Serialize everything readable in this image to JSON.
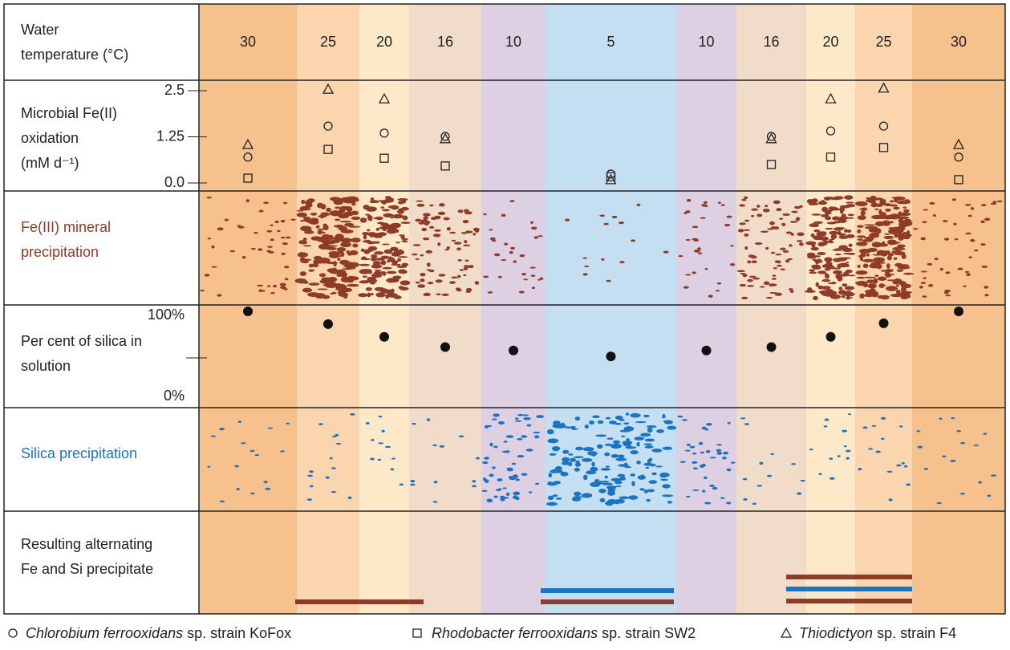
{
  "header": {
    "label_lines": [
      "Water",
      "temperature (°C)"
    ],
    "temperatures": [
      30,
      25,
      20,
      16,
      10,
      5,
      10,
      16,
      20,
      25,
      30
    ],
    "colors": [
      "#f7c18e",
      "#fad5ae",
      "#fde9c8",
      "#f1dcc9",
      "#ddd0e3",
      "#c4def2",
      "#ddd0e3",
      "#f1dcc9",
      "#fde9c8",
      "#fad5ae",
      "#f7c18e"
    ]
  },
  "oxidation": {
    "label_lines": [
      "Microbial Fe(II)",
      "oxidation",
      "(mM d⁻¹)"
    ],
    "ylim": [
      0,
      2.5
    ],
    "yticks": [
      {
        "value": 0,
        "label": "0.0"
      },
      1.25,
      2.5
    ],
    "series": [
      {
        "species": "Chlorobium ferrooxidans",
        "strain": "sp. strain KoFox",
        "marker": "circle",
        "values": [
          0.7,
          1.54,
          1.35,
          1.26,
          null,
          0.24,
          null,
          1.26,
          1.41,
          1.54,
          0.7
        ]
      },
      {
        "species": "Rhodobacter ferrooxidans",
        "strain": "sp. strain SW2",
        "marker": "square",
        "values": [
          0.13,
          0.91,
          0.67,
          0.46,
          null,
          0.17,
          null,
          0.5,
          0.7,
          0.96,
          0.09
        ]
      },
      {
        "species": "Thiodictyon",
        "strain": "sp. strain F4",
        "marker": "triangle",
        "values": [
          1.04,
          2.54,
          2.28,
          1.2,
          null,
          0.09,
          null,
          1.2,
          2.28,
          2.57,
          1.04
        ]
      }
    ]
  },
  "fe_precipitation": {
    "label_lines": [
      "Fe(III) mineral",
      "precipitation"
    ],
    "color": "#8e3b28"
  },
  "silica_in_solution": {
    "label_lines": [
      "Per cent of silica in",
      "solution"
    ],
    "ylim": [
      0,
      100
    ],
    "yticks": [
      {
        "value": 0,
        "label": "0%"
      },
      {
        "value": 100,
        "label": "100%"
      }
    ],
    "values": [
      100,
      85,
      70,
      58,
      54,
      47,
      54,
      58,
      70,
      86,
      100
    ]
  },
  "silica_precipitation": {
    "label_lines": [
      "Silica precipitation"
    ],
    "color": "#1b74c0"
  },
  "result": {
    "label_lines": [
      "Resulting alternating",
      "Fe and  Si precipitate"
    ]
  }
}
